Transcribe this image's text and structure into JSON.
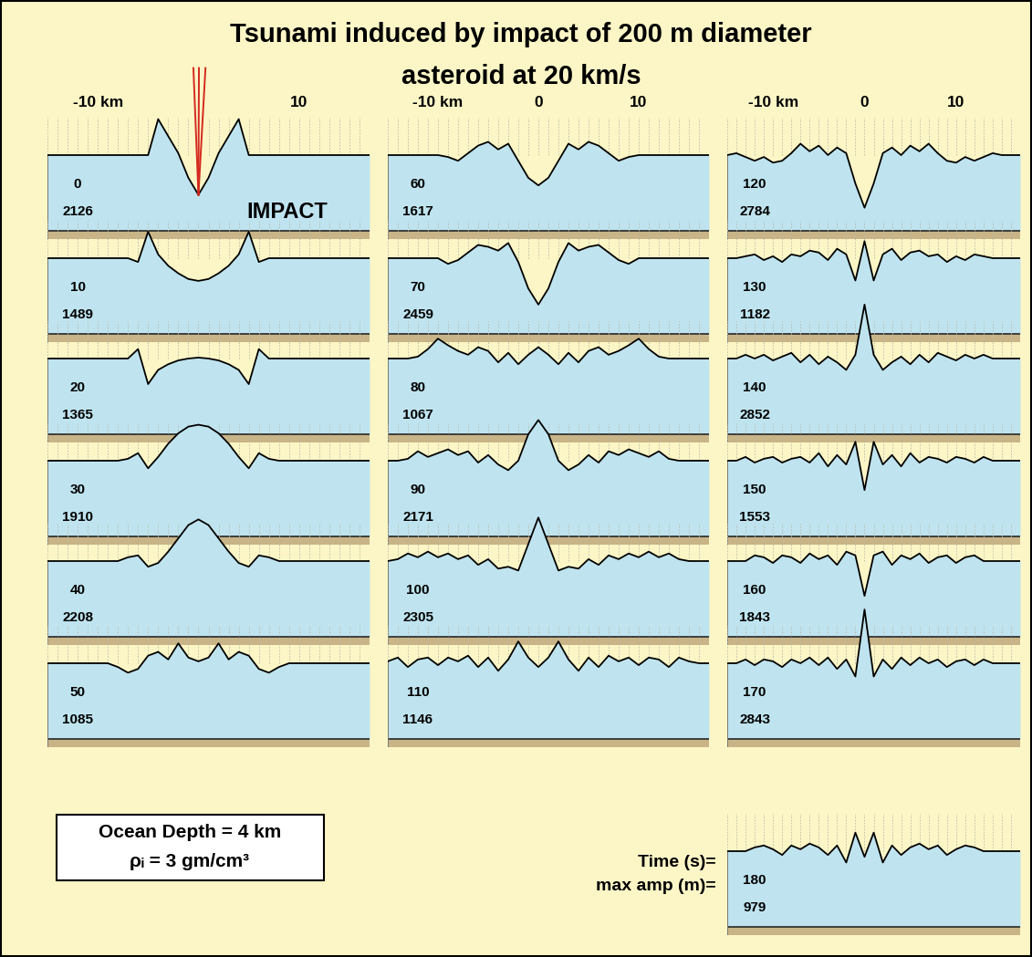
{
  "chart_data": {
    "type": "wave_panels",
    "title_lines": [
      "Tsunami induced by impact of 200 m diameter",
      "asteroid at 20 km/s"
    ],
    "x_km": [
      -15,
      -14,
      -13,
      -12,
      -11,
      -10,
      -9,
      -8,
      -7,
      -6,
      -5,
      -4,
      -3,
      -2,
      -1,
      0,
      1,
      2,
      3,
      4,
      5,
      6,
      7,
      8,
      9,
      10,
      11,
      12,
      13,
      14,
      15,
      16,
      17
    ],
    "ylim_km": [
      -4.45,
      3.0
    ],
    "ocean_depth_km": 4,
    "grid": true,
    "column_ticks": [
      [
        {
          "value": -10,
          "label": "-10 km"
        },
        {
          "value": 10,
          "label": "10"
        }
      ],
      [
        {
          "value": -10,
          "label": "-10 km"
        },
        0,
        10
      ],
      [
        {
          "value": -10,
          "label": "-10 km"
        },
        0,
        10
      ]
    ],
    "impact_label": "IMPACT",
    "info_box": [
      "Ocean Depth = 4 km",
      "ρᵢ = 3 gm/cm³"
    ],
    "row_labels": [
      "Time (s)=",
      "max amp (m)="
    ],
    "panels": [
      {
        "time": 0,
        "max_amp": 2126,
        "surface_km": [
          0,
          0,
          0,
          0,
          0,
          0,
          0,
          0,
          0,
          0,
          0,
          1.9,
          1.0,
          0.1,
          -1.2,
          -2.1,
          -1.2,
          0.1,
          1.0,
          1.9,
          0,
          0,
          0,
          0,
          0,
          0,
          0,
          0,
          0,
          0,
          0,
          0,
          0
        ]
      },
      {
        "time": 10,
        "max_amp": 1489,
        "surface_km": [
          0,
          0,
          0,
          0,
          0,
          0,
          0,
          0,
          0,
          -0.2,
          1.4,
          0.2,
          -0.4,
          -0.8,
          -1.1,
          -1.2,
          -1.1,
          -0.8,
          -0.4,
          0.2,
          1.4,
          -0.2,
          0,
          0,
          0,
          0,
          0,
          0,
          0,
          0,
          0,
          0,
          0
        ]
      },
      {
        "time": 20,
        "max_amp": 1365,
        "surface_km": [
          0,
          0,
          0,
          0,
          0,
          0,
          0,
          0,
          0,
          0.5,
          -1.35,
          -0.6,
          -0.3,
          -0.1,
          0,
          0.05,
          0,
          -0.1,
          -0.3,
          -0.6,
          -1.35,
          0.5,
          0,
          0,
          0,
          0,
          0,
          0,
          0,
          0,
          0,
          0,
          0
        ]
      },
      {
        "time": 30,
        "max_amp": 1910,
        "surface_km": [
          0,
          0,
          0,
          0,
          0,
          0,
          0,
          0,
          0.1,
          0.4,
          -0.4,
          0.2,
          0.9,
          1.45,
          1.8,
          1.9,
          1.8,
          1.45,
          0.9,
          0.2,
          -0.4,
          0.4,
          0.1,
          0,
          0,
          0,
          0,
          0,
          0,
          0,
          0,
          0,
          0
        ]
      },
      {
        "time": 40,
        "max_amp": 2208,
        "surface_km": [
          0,
          0,
          0,
          0,
          0,
          0,
          0,
          0,
          0.2,
          0.3,
          -0.3,
          -0.1,
          0.5,
          1.2,
          1.9,
          2.2,
          1.9,
          1.2,
          0.5,
          -0.1,
          -0.3,
          0.3,
          0.2,
          0,
          0,
          0,
          0,
          0,
          0,
          0,
          0,
          0,
          0
        ]
      },
      {
        "time": 50,
        "max_amp": 1085,
        "surface_km": [
          0,
          0,
          0,
          0,
          0,
          0,
          0,
          -0.2,
          -0.5,
          -0.3,
          0.4,
          0.6,
          0.2,
          1.05,
          0.3,
          0.1,
          0.3,
          1.05,
          0.2,
          0.6,
          0.4,
          -0.3,
          -0.5,
          -0.2,
          0,
          0,
          0,
          0,
          0,
          0,
          0,
          0,
          0
        ]
      },
      {
        "time": 60,
        "max_amp": 1617,
        "surface_km": [
          0,
          0,
          0,
          0,
          0,
          0,
          -0.1,
          -0.3,
          0.1,
          0.5,
          0.7,
          0.3,
          0.6,
          -0.3,
          -1.2,
          -1.6,
          -1.2,
          -0.3,
          0.6,
          0.3,
          0.7,
          0.5,
          0.1,
          -0.3,
          -0.1,
          0,
          0,
          0,
          0,
          0,
          0,
          0,
          0
        ]
      },
      {
        "time": 70,
        "max_amp": 2459,
        "surface_km": [
          0,
          0,
          0,
          0,
          0,
          0,
          -0.3,
          -0.1,
          0.3,
          0.7,
          0.6,
          0.4,
          0.8,
          -0.2,
          -1.6,
          -2.45,
          -1.6,
          -0.2,
          0.8,
          0.4,
          0.6,
          0.7,
          0.3,
          -0.1,
          -0.3,
          0,
          0,
          0,
          0,
          0,
          0,
          0,
          0
        ]
      },
      {
        "time": 80,
        "max_amp": 1067,
        "surface_km": [
          0,
          0,
          0,
          0.1,
          0.5,
          1.05,
          0.7,
          0.4,
          0.2,
          0.6,
          0.4,
          -0.2,
          0.3,
          -0.3,
          0.2,
          0.6,
          0.2,
          -0.3,
          0.3,
          -0.2,
          0.4,
          0.6,
          0.2,
          0.4,
          0.7,
          1.05,
          0.5,
          0.1,
          0,
          0,
          0,
          0,
          0
        ]
      },
      {
        "time": 90,
        "max_amp": 2171,
        "surface_km": [
          0,
          0,
          0.1,
          0.5,
          0.2,
          0.4,
          0.6,
          0.3,
          0.5,
          -0.1,
          0.3,
          -0.2,
          -0.5,
          0,
          1.4,
          2.15,
          1.4,
          0,
          -0.5,
          -0.2,
          0.3,
          -0.1,
          0.5,
          0.3,
          0.6,
          0.4,
          0.2,
          0.5,
          0.1,
          0,
          0,
          0,
          0
        ]
      },
      {
        "time": 100,
        "max_amp": 2305,
        "surface_km": [
          0,
          0.1,
          0.4,
          0.2,
          0.5,
          0.2,
          0.4,
          0.1,
          0.3,
          -0.2,
          0.1,
          -0.4,
          -0.3,
          -0.5,
          0.9,
          2.3,
          0.9,
          -0.5,
          -0.3,
          -0.4,
          0.1,
          -0.2,
          0.3,
          0.1,
          0.4,
          0.2,
          0.5,
          0.2,
          0.4,
          0.1,
          0,
          0,
          0
        ]
      },
      {
        "time": 110,
        "max_amp": 1146,
        "surface_km": [
          0.1,
          0.3,
          -0.2,
          0.2,
          0.3,
          -0.1,
          0.3,
          0.1,
          0.4,
          -0.2,
          0.3,
          -0.4,
          0.2,
          1.15,
          0.3,
          -0.2,
          0.3,
          1.15,
          0.2,
          -0.4,
          0.3,
          -0.2,
          0.4,
          0.1,
          0.3,
          -0.1,
          0.3,
          0.2,
          -0.2,
          0.3,
          0.1,
          0,
          0
        ]
      },
      {
        "time": 120,
        "max_amp": 2784,
        "surface_km": [
          0,
          0.1,
          -0.1,
          -0.3,
          -0.1,
          -0.4,
          -0.3,
          0.1,
          0.6,
          0.2,
          0.5,
          0,
          0.4,
          0.1,
          -1.5,
          -2.78,
          -1.5,
          0.1,
          0.4,
          0,
          0.5,
          0.2,
          0.6,
          0.1,
          -0.3,
          -0.4,
          -0.1,
          -0.3,
          -0.1,
          0.1,
          0,
          0,
          0
        ]
      },
      {
        "time": 130,
        "max_amp": 1182,
        "surface_km": [
          0,
          0,
          0.1,
          0.2,
          -0.1,
          0.1,
          -0.2,
          0.2,
          0.1,
          0.4,
          0.3,
          -0.1,
          0.5,
          0.2,
          -1.18,
          0.9,
          -1.18,
          0.2,
          0.5,
          -0.1,
          0.3,
          0.4,
          0.1,
          0.2,
          -0.2,
          0.1,
          -0.1,
          0.2,
          0.1,
          0,
          0,
          0,
          0
        ]
      },
      {
        "time": 140,
        "max_amp": 2852,
        "surface_km": [
          0,
          0,
          0.2,
          0,
          0.2,
          -0.1,
          0.1,
          0.3,
          -0.2,
          0.2,
          -0.3,
          0.1,
          -0.2,
          -0.6,
          0.2,
          2.85,
          0.2,
          -0.6,
          -0.2,
          0.1,
          -0.3,
          0.2,
          -0.2,
          0.3,
          0.1,
          -0.1,
          0.2,
          0,
          0.2,
          0,
          0,
          0,
          0
        ]
      },
      {
        "time": 150,
        "max_amp": 1553,
        "surface_km": [
          0,
          0,
          0.2,
          -0.1,
          0.1,
          0.2,
          -0.1,
          0.1,
          0.2,
          -0.1,
          0.4,
          -0.3,
          0.3,
          -0.2,
          1.0,
          -1.55,
          1.0,
          -0.2,
          0.3,
          -0.3,
          0.4,
          -0.1,
          0.2,
          0.1,
          -0.1,
          0.2,
          0.1,
          -0.1,
          0.2,
          0,
          0,
          0,
          0
        ]
      },
      {
        "time": 160,
        "max_amp": 1843,
        "surface_km": [
          0,
          0,
          0,
          0.3,
          0.2,
          -0.1,
          0.3,
          0.2,
          -0.1,
          0.4,
          0.1,
          0.3,
          -0.2,
          0.5,
          0.3,
          -1.84,
          0.3,
          0.5,
          -0.2,
          0.3,
          0.1,
          0.4,
          -0.1,
          0.2,
          0.3,
          -0.1,
          0.2,
          0.3,
          0,
          0,
          0,
          0,
          0
        ]
      },
      {
        "time": 170,
        "max_amp": 2843,
        "surface_km": [
          0,
          0,
          0.2,
          -0.1,
          0.2,
          0.1,
          -0.2,
          0.2,
          0,
          0.3,
          -0.1,
          0.3,
          -0.3,
          0.2,
          -0.7,
          2.84,
          -0.7,
          0.2,
          -0.3,
          0.3,
          -0.1,
          0.3,
          0,
          0.2,
          -0.2,
          0.1,
          0.2,
          -0.1,
          0.2,
          0,
          0,
          0,
          0
        ]
      },
      {
        "time": 180,
        "max_amp": 979,
        "surface_km": [
          0,
          0,
          0,
          0.2,
          0.3,
          0.1,
          -0.2,
          0.3,
          0.1,
          0.4,
          0.2,
          -0.2,
          0.3,
          -0.6,
          0.98,
          -0.3,
          0.98,
          -0.6,
          0.3,
          -0.2,
          0.2,
          0.4,
          0.1,
          0.3,
          -0.2,
          0.1,
          0.3,
          0.2,
          0,
          0,
          0,
          0,
          0
        ]
      }
    ]
  }
}
